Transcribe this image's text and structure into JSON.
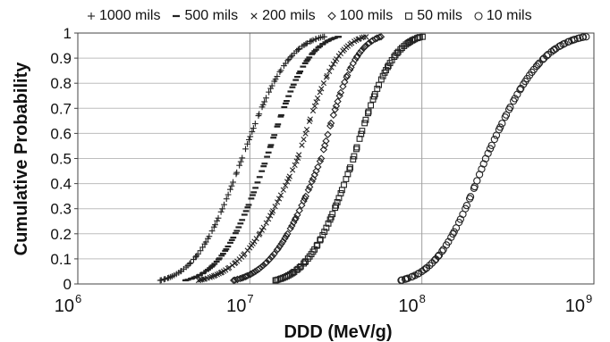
{
  "chart_data": {
    "type": "scatter",
    "title": "",
    "xlabel": "DDD (MeV/g)",
    "ylabel": "Cumulative Probability",
    "x_scale": "log",
    "xlim": [
      1000000,
      1000000000
    ],
    "ylim": [
      0,
      1
    ],
    "x_ticks": [
      {
        "base": "10",
        "exp": "6",
        "value": 1000000
      },
      {
        "base": "10",
        "exp": "7",
        "value": 10000000
      },
      {
        "base": "10",
        "exp": "8",
        "value": 100000000
      },
      {
        "base": "10",
        "exp": "9",
        "value": 1000000000
      }
    ],
    "y_ticks": [
      "0",
      "0.1",
      "0.2",
      "0.3",
      "0.4",
      "0.5",
      "0.6",
      "0.7",
      "0.8",
      "0.9",
      "1"
    ],
    "grid": true,
    "legend_position": "top",
    "series": [
      {
        "name": "1000 mils",
        "marker": "plus",
        "x_min": 3000000,
        "x_median": 9000000,
        "x_max": 27000000
      },
      {
        "name": "500 mils",
        "marker": "dash",
        "x_min": 4200000,
        "x_median": 12500000,
        "x_max": 33000000
      },
      {
        "name": "200 mils",
        "marker": "cross",
        "x_min": 5000000,
        "x_median": 19000000,
        "x_max": 47000000
      },
      {
        "name": "100 mils",
        "marker": "diamond",
        "x_min": 8000000,
        "x_median": 26000000,
        "x_max": 58000000
      },
      {
        "name": "50 mils",
        "marker": "square",
        "x_min": 14000000,
        "x_median": 40000000,
        "x_max": 100000000
      },
      {
        "name": "10 mils",
        "marker": "circle",
        "x_min": 75000000,
        "x_median": 235000000,
        "x_max": 900000000
      }
    ]
  }
}
